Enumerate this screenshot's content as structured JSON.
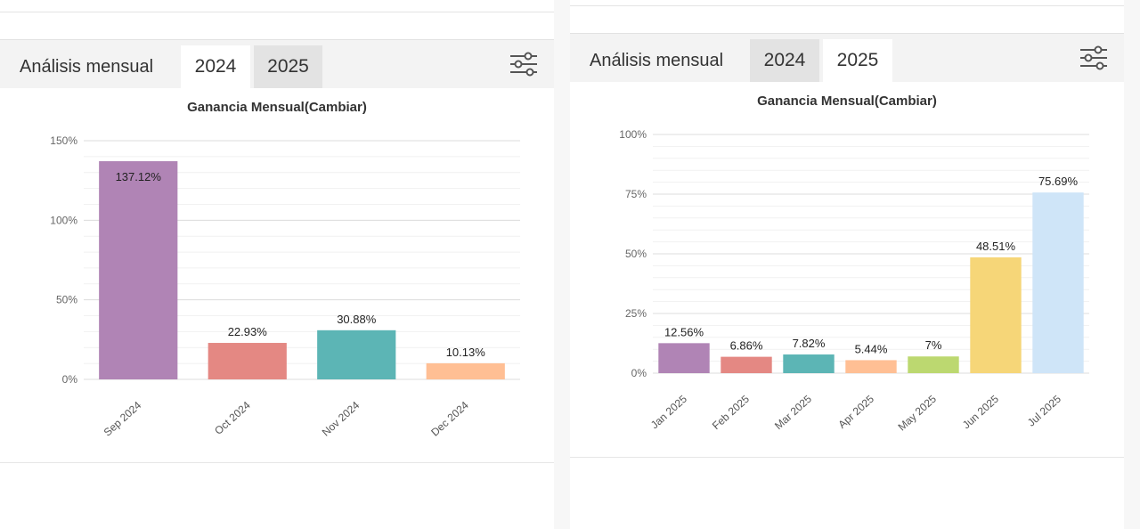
{
  "left": {
    "header": {
      "title": "Análisis mensual",
      "tabs": [
        {
          "label": "2024",
          "active": true
        },
        {
          "label": "2025",
          "active": false
        }
      ]
    },
    "chart_title": "Ganancia Mensual(Cambiar)"
  },
  "right": {
    "header": {
      "title": "Análisis mensual",
      "tabs": [
        {
          "label": "2024",
          "active": false
        },
        {
          "label": "2025",
          "active": true
        }
      ]
    },
    "chart_title": "Ganancia Mensual(Cambiar)"
  },
  "icons": {
    "filter": "sliders-icon"
  },
  "chart_data": [
    {
      "type": "bar",
      "title": "Ganancia Mensual(Cambiar)",
      "categories": [
        "Sep 2024",
        "Oct 2024",
        "Nov 2024",
        "Dec 2024"
      ],
      "values": [
        137.12,
        22.93,
        30.88,
        10.13
      ],
      "value_labels": [
        "137.12%",
        "22.93%",
        "30.88%",
        "10.13%"
      ],
      "colors": [
        "#b084b5",
        "#e48883",
        "#5cb5b5",
        "#ffbf94"
      ],
      "ylim": [
        0,
        150
      ],
      "yticks": [
        0,
        50,
        100,
        150
      ],
      "ytick_labels": [
        "0%",
        "50%",
        "100%",
        "150%"
      ],
      "grid": true
    },
    {
      "type": "bar",
      "title": "Ganancia Mensual(Cambiar)",
      "categories": [
        "Jan 2025",
        "Feb 2025",
        "Mar 2025",
        "Apr 2025",
        "May 2025",
        "Jun 2025",
        "Jul 2025"
      ],
      "values": [
        12.56,
        6.86,
        7.82,
        5.44,
        7,
        48.51,
        75.69
      ],
      "value_labels": [
        "12.56%",
        "6.86%",
        "7.82%",
        "5.44%",
        "7%",
        "48.51%",
        "75.69%"
      ],
      "colors": [
        "#b084b5",
        "#e48883",
        "#5cb5b5",
        "#ffbf94",
        "#bcd870",
        "#f6d678",
        "#cfe5f8"
      ],
      "ylim": [
        0,
        100
      ],
      "yticks": [
        0,
        25,
        50,
        75,
        100
      ],
      "ytick_labels": [
        "0%",
        "25%",
        "50%",
        "75%",
        "100%"
      ],
      "grid": true
    }
  ]
}
